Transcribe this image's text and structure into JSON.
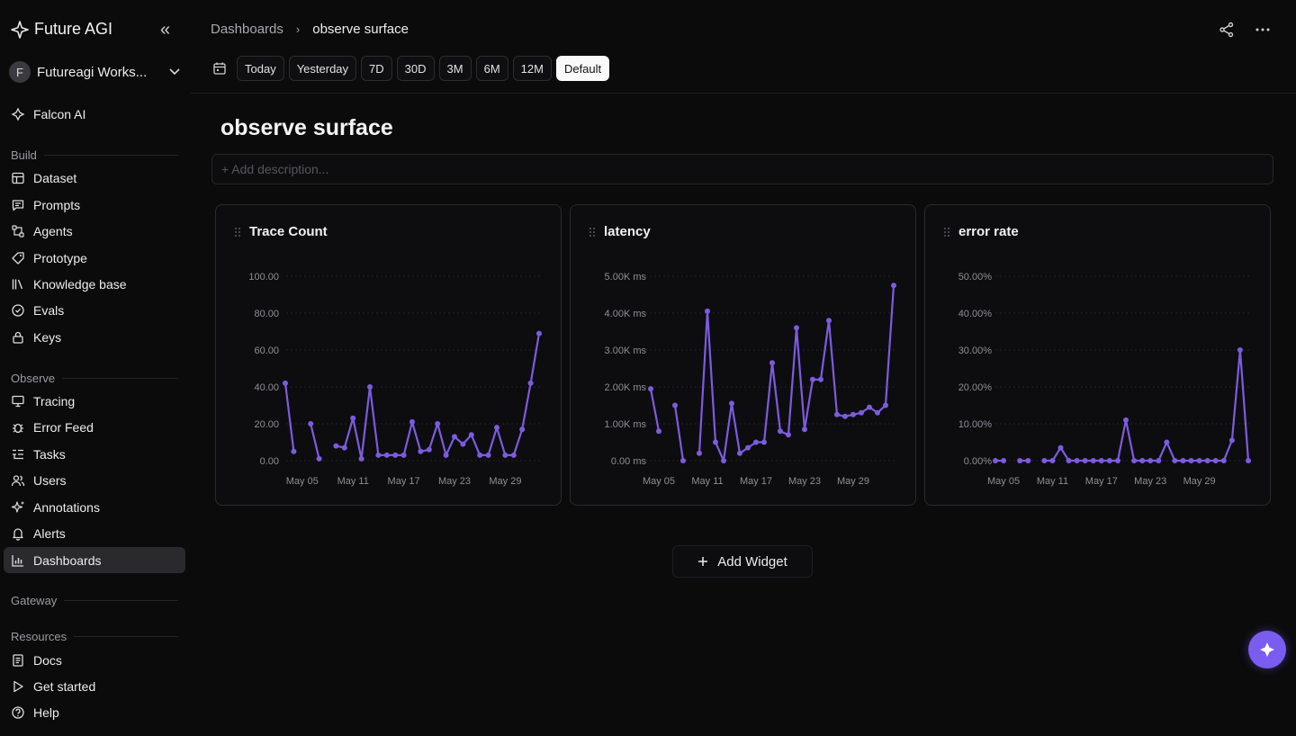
{
  "brand": {
    "name": "Future AGI"
  },
  "workspace": {
    "initial": "F",
    "name": "Futureagi Works..."
  },
  "sidebar": {
    "falcon": "Falcon AI",
    "sections": {
      "build": "Build",
      "observe": "Observe",
      "gateway": "Gateway",
      "resources": "Resources"
    },
    "build_items": [
      "Dataset",
      "Prompts",
      "Agents",
      "Prototype",
      "Knowledge base",
      "Evals",
      "Keys"
    ],
    "observe_items": [
      "Tracing",
      "Error Feed",
      "Tasks",
      "Users",
      "Annotations",
      "Alerts",
      "Dashboards"
    ],
    "resource_items": [
      "Docs",
      "Get started",
      "Help"
    ],
    "active": "Dashboards"
  },
  "header": {
    "crumb_parent": "Dashboards",
    "crumb_current": "observe surface"
  },
  "toolbar": {
    "ranges": [
      "Today",
      "Yesterday",
      "7D",
      "30D",
      "3M",
      "6M",
      "12M",
      "Default"
    ],
    "active": "Default"
  },
  "page": {
    "title": "observe surface",
    "description_placeholder": "+ Add description..."
  },
  "add_widget": {
    "label": "Add Widget"
  },
  "colors": {
    "accent": "#7b5cf0",
    "line": "#7d5be0",
    "background": "#0b0b0c"
  },
  "chart_data": [
    {
      "type": "line",
      "title": "Trace Count",
      "yticks": [
        "100.00",
        "80.00",
        "60.00",
        "40.00",
        "20.00",
        "0.00"
      ],
      "ylim": [
        0,
        100
      ],
      "xtick_labels": [
        "May 05",
        "May 11",
        "May 17",
        "May 23",
        "May 29"
      ],
      "xtick_index": [
        2,
        8,
        14,
        20,
        26
      ],
      "values": [
        42,
        5,
        null,
        20,
        1,
        null,
        8,
        7,
        23,
        1,
        40,
        3,
        3,
        3,
        3,
        21,
        5,
        6,
        20,
        3,
        13,
        9,
        14,
        3,
        3,
        18,
        3,
        3,
        17,
        42,
        69
      ]
    },
    {
      "type": "line",
      "title": "latency",
      "yticks": [
        "5.00K ms",
        "4.00K ms",
        "3.00K ms",
        "2.00K ms",
        "1.00K ms",
        "0.00 ms"
      ],
      "ylim": [
        0,
        5000
      ],
      "xtick_labels": [
        "May 05",
        "May 11",
        "May 17",
        "May 23",
        "May 29"
      ],
      "xtick_index": [
        1,
        7,
        13,
        19,
        25
      ],
      "values": [
        1950,
        800,
        null,
        1500,
        0,
        null,
        200,
        4050,
        500,
        0,
        1550,
        200,
        350,
        500,
        500,
        2650,
        800,
        700,
        3600,
        850,
        2200,
        2200,
        3800,
        1250,
        1200,
        1250,
        1300,
        1450,
        1300,
        1500,
        4750
      ]
    },
    {
      "type": "line",
      "title": "error rate",
      "yticks": [
        "50.00%",
        "40.00%",
        "30.00%",
        "20.00%",
        "10.00%",
        "0.00%"
      ],
      "ylim": [
        0,
        50
      ],
      "xtick_labels": [
        "May 05",
        "May 11",
        "May 17",
        "May 23",
        "May 29"
      ],
      "xtick_index": [
        1,
        7,
        13,
        19,
        25
      ],
      "values": [
        0,
        0,
        null,
        0,
        0,
        null,
        0,
        0,
        3.5,
        0,
        0,
        0,
        0,
        0,
        0,
        0,
        11,
        0,
        0,
        0,
        0,
        5,
        0,
        0,
        0,
        0,
        0,
        0,
        0,
        5.5,
        30,
        0
      ]
    }
  ]
}
